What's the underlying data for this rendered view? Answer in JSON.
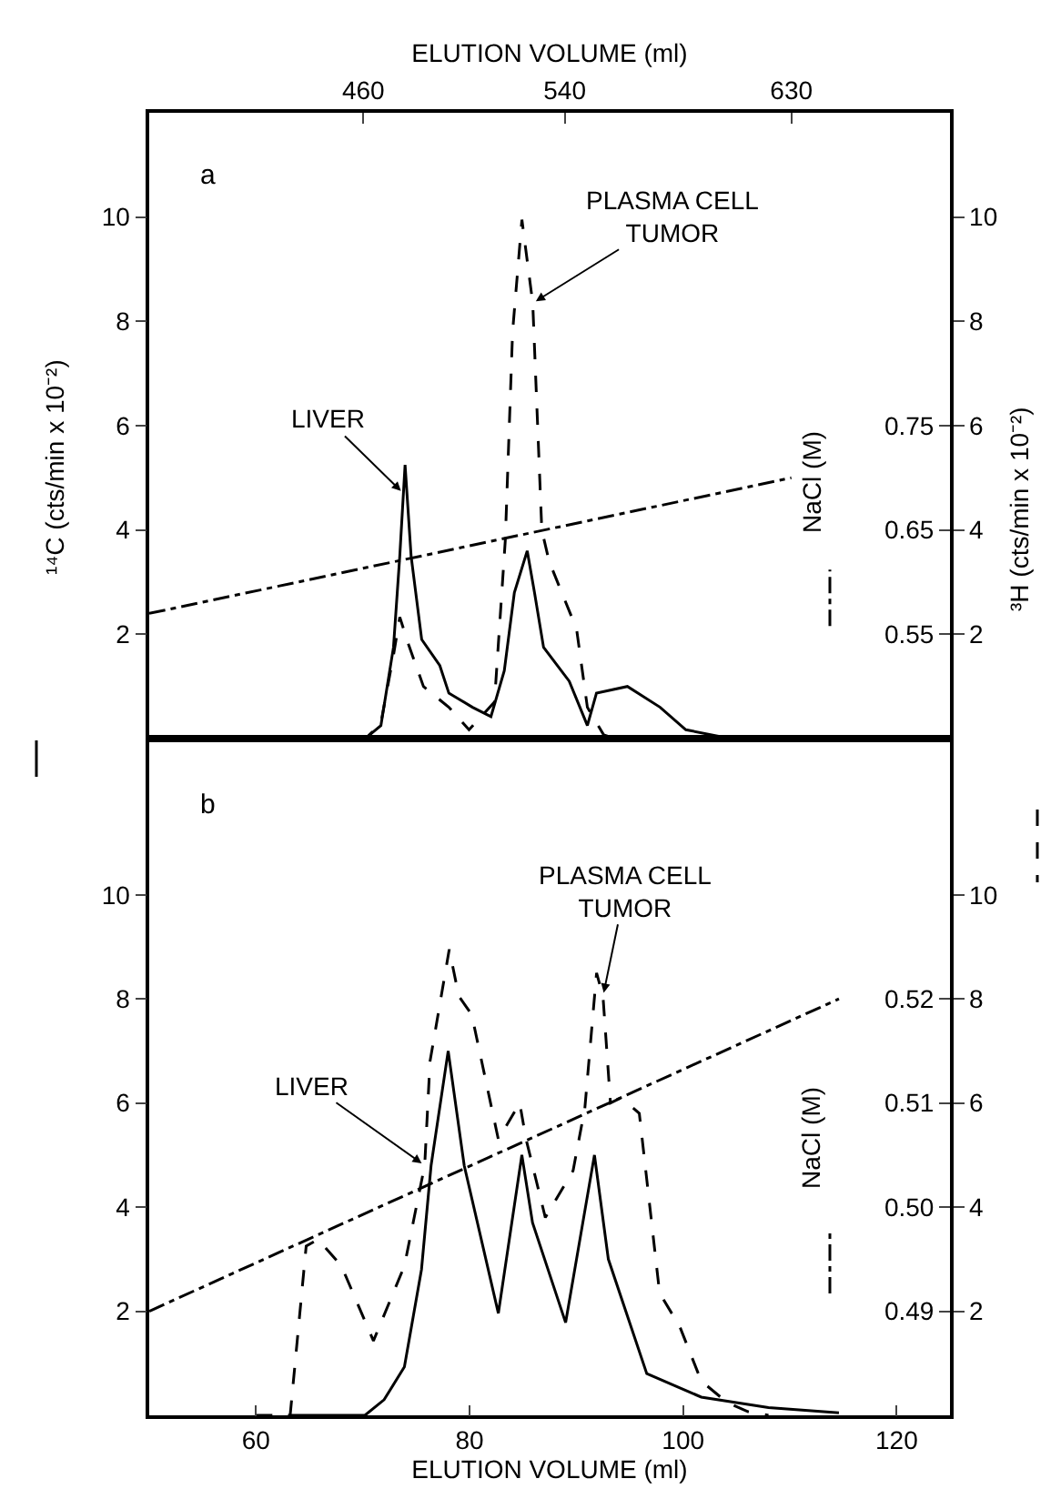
{
  "chart_data": [
    {
      "type": "line",
      "xlabel": "ELUTION VOLUME (ml)",
      "xlim": [
        375,
        693
      ],
      "xticks": [
        460,
        540,
        630
      ],
      "ylabel": "¹⁴C (cts/min x 10⁻²)",
      "y2label": "³H (cts/min x 10⁻²)",
      "y3label": "NaCl (M)",
      "ylim": [
        0,
        12
      ],
      "yticks": [
        2,
        4,
        6,
        8,
        10
      ],
      "y2lim": [
        0,
        12
      ],
      "y2ticks": [
        2,
        4,
        6,
        8,
        10
      ],
      "y3lim": [
        0.45,
        1.05
      ],
      "y3ticks": [
        0.55,
        0.65,
        0.75
      ],
      "grid": false,
      "annotations": [
        "a",
        {
          "text": "LIVER",
          "x": 476,
          "y": 4.7
        },
        {
          "text": "PLASMA CELL\nTUMOR",
          "x": 527.3,
          "y": 8.35
        }
      ],
      "series": [
        {
          "color": "#000000",
          "axis": "y",
          "line_style": "solid",
          "x": [
            380,
            455,
            462,
            467,
            472,
            474.5,
            476.6,
            479,
            483.2,
            490.4,
            494,
            503.4,
            510.7,
            516,
            520,
            525.1,
            528,
            531.6,
            541.8,
            549,
            552.6,
            564.9,
            577.9,
            588.1,
            602.5,
            620
          ],
          "values": [
            0,
            0,
            0.05,
            0.25,
            1.75,
            3.5,
            5.25,
            3.5,
            1.9,
            1.4,
            0.87,
            0.6,
            0.42,
            1.3,
            2.8,
            3.6,
            2.8,
            1.75,
            1.1,
            0.25,
            0.87,
            1.0,
            0.6,
            0.17,
            0.03,
            0
          ]
        },
        {
          "color": "#000000",
          "axis": "y2",
          "line_style": "dashed",
          "x": [
            380,
            455,
            462,
            467,
            472,
            474.5,
            478,
            483.9,
            494,
            502,
            512.1,
            516.4,
            519.3,
            523,
            527.3,
            530.9,
            533.8,
            544.7,
            549,
            555.5,
            560
          ],
          "values": [
            0,
            0,
            0.05,
            0.3,
            1.6,
            2.33,
            1.8,
            1.0,
            0.6,
            0.17,
            0.7,
            3.8,
            7.8,
            9.95,
            8.35,
            4.0,
            3.4,
            2.1,
            0.6,
            0.07,
            0
          ]
        },
        {
          "color": "#000000",
          "axis": "y3",
          "line_style": "dashdot",
          "x": [
            375,
            630
          ],
          "values": [
            0.57,
            0.7
          ]
        }
      ]
    },
    {
      "type": "line",
      "xlabel": "ELUTION VOLUME (ml)",
      "xlim": [
        50,
        125
      ],
      "xticks": [
        60,
        80,
        100,
        120
      ],
      "ylim": [
        0,
        13
      ],
      "yticks": [
        2,
        4,
        6,
        8,
        10
      ],
      "y2lim": [
        0,
        13
      ],
      "y2ticks": [
        2,
        4,
        6,
        8,
        10
      ],
      "y3label": "NaCl (M)",
      "y3lim": [
        0.48,
        0.545
      ],
      "y3ticks": [
        0.49,
        {
          "value": 0.5,
          "label": "0.50"
        },
        0.51,
        0.52
      ],
      "grid": false,
      "annotations": [
        "b",
        {
          "text": "LIVER",
          "x": 75.8,
          "y": 4.8
        },
        {
          "text": "PLASMA CELL\nTUMOR",
          "x": 92.5,
          "y": 8.05
        }
      ],
      "series": [
        {
          "color": "#000000",
          "axis": "y",
          "line_style": "solid",
          "x": [
            63,
            70.2,
            72,
            73.9,
            75.5,
            76.4,
            78,
            79.5,
            82.7,
            84.9,
            85.9,
            89,
            91.7,
            93,
            96.6,
            101.7,
            108,
            114.6
          ],
          "values": [
            0,
            0,
            0.3,
            0.93,
            2.8,
            4.8,
            7.0,
            4.8,
            1.96,
            5.0,
            3.7,
            1.78,
            5.0,
            3.0,
            0.8,
            0.35,
            0.15,
            0.05
          ]
        },
        {
          "color": "#000000",
          "axis": "y2",
          "line_style": "dashed",
          "x": [
            60,
            63.2,
            64.7,
            65.8,
            68,
            71,
            73.9,
            75.8,
            76.3,
            78.1,
            79,
            80.2,
            82.7,
            84.7,
            85.3,
            87.1,
            89.7,
            90.8,
            91.9,
            92.5,
            93.2,
            94.2,
            95.9,
            97.8,
            99.7,
            101.7,
            104.1,
            106.1,
            108
          ],
          "values": [
            0,
            0,
            3.25,
            3.38,
            2.87,
            1.43,
            2.87,
            4.8,
            6.8,
            8.95,
            8.05,
            7.7,
            5.3,
            6.0,
            5.3,
            3.8,
            4.7,
            5.9,
            8.5,
            8.05,
            6.0,
            6.1,
            5.8,
            2.35,
            1.7,
            0.66,
            0.25,
            0.07,
            0
          ]
        },
        {
          "color": "#000000",
          "axis": "y3",
          "line_style": "dashdot",
          "x": [
            50,
            114.6
          ],
          "values": [
            0.49,
            0.52
          ]
        }
      ]
    }
  ]
}
